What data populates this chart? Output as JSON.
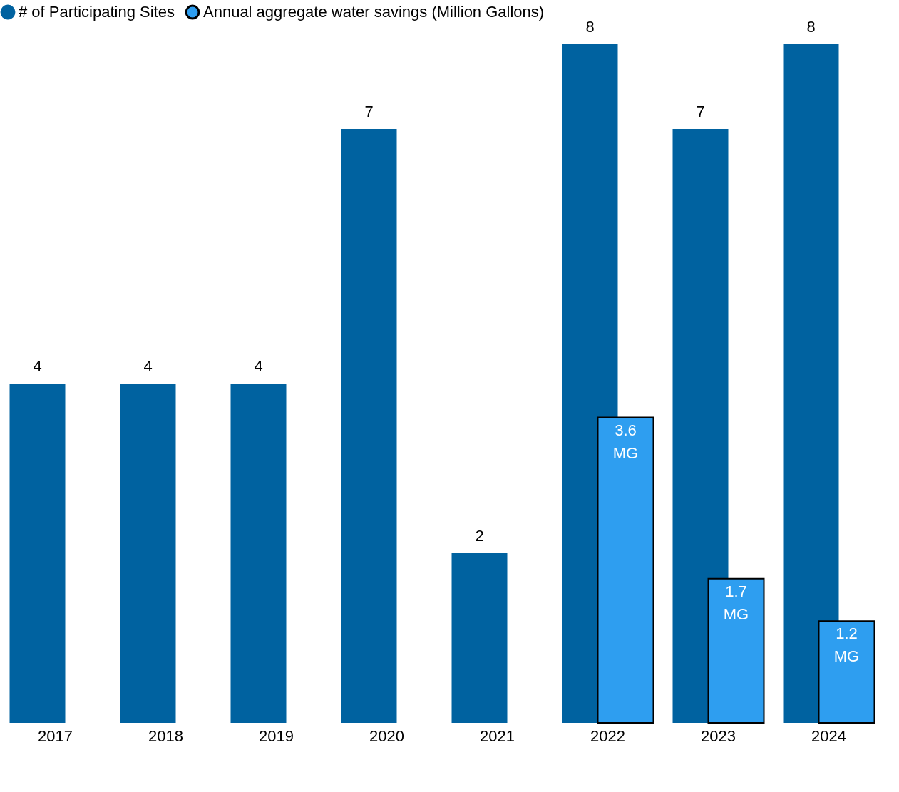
{
  "chart_data": {
    "type": "bar",
    "categories": [
      "2017",
      "2018",
      "2019",
      "2020",
      "2021",
      "2022",
      "2023",
      "2024"
    ],
    "series": [
      {
        "name": "# of Participating Sites",
        "color": "#0062a0",
        "values": [
          4,
          4,
          4,
          7,
          2,
          8,
          7,
          8
        ]
      },
      {
        "name": "Annual aggregate water savings (Million Gallons)",
        "color": "#2e9ef0",
        "values": [
          null,
          null,
          null,
          null,
          null,
          3.6,
          1.7,
          1.2
        ],
        "value_labels": [
          null,
          null,
          null,
          null,
          null,
          "3.6 MG",
          "1.7 MG",
          "1.2 MG"
        ]
      }
    ],
    "data_labels": true,
    "legend": "top left",
    "grid": false
  }
}
